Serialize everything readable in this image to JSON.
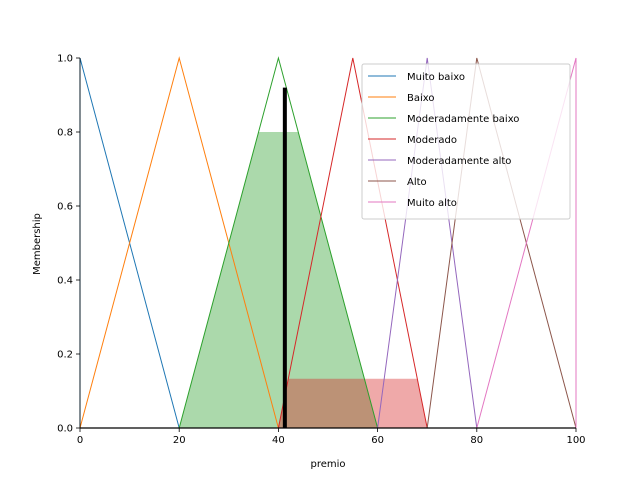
{
  "chart_data": {
    "type": "line",
    "xlabel": "premio",
    "ylabel": "Membership",
    "xlim": [
      0,
      100
    ],
    "ylim": [
      0,
      1.0
    ],
    "x_ticks": [
      "0",
      "20",
      "40",
      "60",
      "80",
      "100"
    ],
    "y_ticks": [
      "0.0",
      "0.2",
      "0.4",
      "0.6",
      "0.8",
      "1.0"
    ],
    "x_tick_values": [
      0,
      20,
      40,
      60,
      80,
      100
    ],
    "y_tick_values": [
      0,
      0.2,
      0.4,
      0.6,
      0.8,
      1.0
    ],
    "legend_position": "top-right",
    "grid": false,
    "series": [
      {
        "name": "Muito baixo",
        "color": "#1f77b4",
        "x": [
          0,
          0,
          20
        ],
        "y": [
          0,
          1,
          0
        ]
      },
      {
        "name": "Baixo",
        "color": "#ff7f0e",
        "x": [
          0,
          20,
          40
        ],
        "y": [
          0,
          1,
          0
        ]
      },
      {
        "name": "Moderadamente baixo",
        "color": "#2ca02c",
        "x": [
          20,
          40,
          60
        ],
        "y": [
          0,
          1,
          0
        ]
      },
      {
        "name": "Moderado",
        "color": "#d62728",
        "x": [
          40,
          55,
          70
        ],
        "y": [
          0,
          1,
          0
        ]
      },
      {
        "name": "Moderadamente alto",
        "color": "#9467bd",
        "x": [
          60,
          70,
          80
        ],
        "y": [
          0,
          1,
          0
        ]
      },
      {
        "name": "Alto",
        "color": "#8c564b",
        "x": [
          70,
          80,
          100
        ],
        "y": [
          0,
          1,
          0
        ]
      },
      {
        "name": "Muito alto",
        "color": "#e377c2",
        "x": [
          80,
          100,
          100
        ],
        "y": [
          0,
          1,
          0
        ]
      }
    ],
    "fills": [
      {
        "series": "Moderadamente baixo",
        "color": "#2ca02c",
        "opacity": 0.4,
        "x": [
          20,
          36,
          44,
          60
        ],
        "y": [
          0,
          0.8,
          0.8,
          0
        ]
      },
      {
        "series": "Moderado",
        "color": "#d62728",
        "opacity": 0.4,
        "x": [
          40,
          42,
          68,
          70
        ],
        "y": [
          0,
          0.133,
          0.133,
          0
        ]
      }
    ],
    "centroid_line": {
      "x": 41.3,
      "y": 0.92,
      "color": "#000000"
    },
    "baseline_color": "#000000"
  }
}
